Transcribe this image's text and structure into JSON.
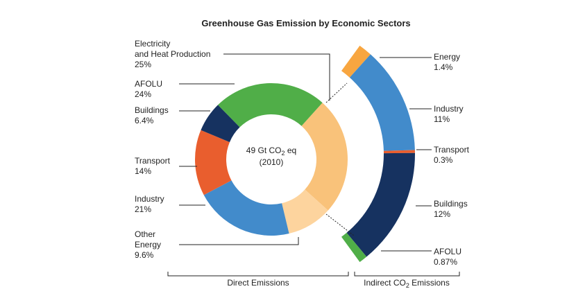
{
  "chart_data": {
    "type": "pie",
    "title": "Greenhouse Gas Emission by Economic Sectors",
    "center_label": {
      "line1_prefix": "49 Gt CO",
      "line1_sub": "2",
      "line1_suffix": " eq",
      "line2": "(2010)"
    },
    "direct": {
      "name": "Direct Emissions",
      "slices": [
        {
          "key": "electricity",
          "label_lines": [
            "Electricity",
            "and Heat Production"
          ],
          "percent_label": "25%",
          "value": 25,
          "color": "#f9c27a"
        },
        {
          "key": "other-energy",
          "label_lines": [
            "Other",
            "Energy"
          ],
          "percent_label": "9.6%",
          "value": 9.6,
          "color": "#fdd49e"
        },
        {
          "key": "industry",
          "label_lines": [
            "Industry"
          ],
          "percent_label": "21%",
          "value": 21,
          "color": "#428bcb"
        },
        {
          "key": "transport",
          "label_lines": [
            "Transport"
          ],
          "percent_label": "14%",
          "value": 14,
          "color": "#e95e2e"
        },
        {
          "key": "buildings",
          "label_lines": [
            "Buildings"
          ],
          "percent_label": "6.4%",
          "value": 6.4,
          "color": "#163260"
        },
        {
          "key": "afolu",
          "label_lines": [
            "AFOLU"
          ],
          "percent_label": "24%",
          "value": 24,
          "color": "#50ae48"
        }
      ]
    },
    "indirect": {
      "name_prefix": "Indirect CO",
      "name_sub": "2",
      "name_suffix": " Emissions",
      "slices": [
        {
          "key": "energy",
          "label": "Energy",
          "percent_label": "1.4%",
          "value": 1.4,
          "color": "#f8a640"
        },
        {
          "key": "industry",
          "label": "Industry",
          "percent_label": "11%",
          "value": 11,
          "color": "#428bcb"
        },
        {
          "key": "transport",
          "label": "Transport",
          "percent_label": "0.3%",
          "value": 0.3,
          "color": "#e95e2e"
        },
        {
          "key": "buildings",
          "label": "Buildings",
          "percent_label": "12%",
          "value": 12,
          "color": "#163260"
        },
        {
          "key": "afolu",
          "label": "AFOLU",
          "percent_label": "0.87%",
          "value": 0.87,
          "color": "#50ae48"
        }
      ]
    }
  }
}
